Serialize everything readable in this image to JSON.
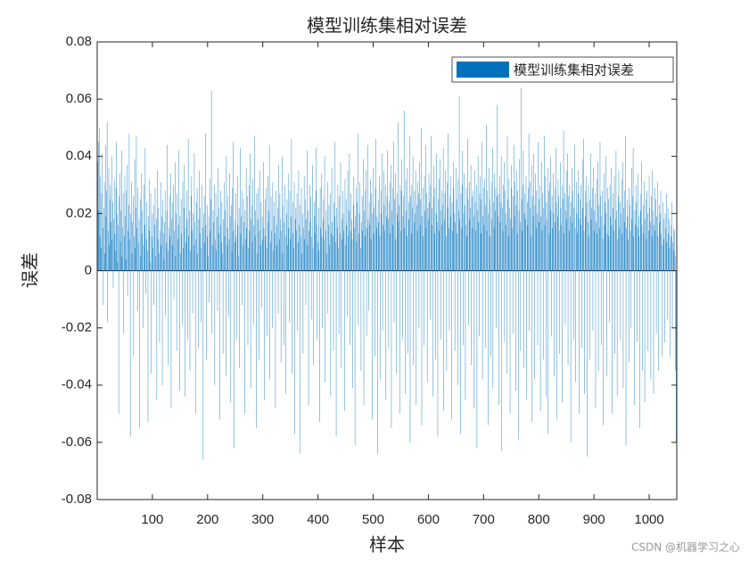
{
  "chart_data": {
    "type": "bar",
    "title": "模型训练集相对误差",
    "x_label": "样本",
    "y_label": "误差",
    "legend": "top-right",
    "color": "#0072BD",
    "xlim": [
      0,
      1050
    ],
    "xticks": [
      100,
      200,
      300,
      400,
      500,
      600,
      700,
      800,
      900,
      1000
    ],
    "ylim": [
      -0.08,
      0.08
    ],
    "yticks": [
      -0.08,
      -0.06,
      -0.04,
      -0.02,
      0,
      0.02,
      0.04,
      0.06,
      0.08
    ],
    "series": [
      {
        "name": "模型训练集相对误差",
        "color": "#0072BD",
        "values": [
          0.038,
          0.045,
          0.021,
          0.05,
          0.012,
          0.033,
          0.008,
          0.027,
          0.041,
          0.015,
          -0.012,
          0.022,
          0.031,
          0.006,
          0.044,
          0.019,
          0.028,
          0.052,
          -0.018,
          0.014,
          0.036,
          0.009,
          0.025,
          0.03,
          0.017,
          0.011,
          0.04,
          0.024,
          -0.006,
          0.018,
          0.032,
          0.013,
          0.007,
          0.029,
          0.045,
          0.02,
          0.003,
          0.016,
          -0.05,
          0.026,
          0.034,
          0.01,
          0.021,
          0.042,
          0.005,
          0.015,
          0.027,
          -0.022,
          0.012,
          0.033,
          0.019,
          0.004,
          0.028,
          0.037,
          -0.009,
          0.014,
          0.023,
          0.048,
          0.011,
          -0.058,
          0.02,
          0.031,
          0.006,
          0.017,
          0.026,
          -0.03,
          0.012,
          0.039,
          0.008,
          0.022,
          0.047,
          0.015,
          -0.014,
          0.029,
          0.01,
          0.018,
          -0.055,
          0.025,
          0.005,
          0.034,
          0.013,
          0.021,
          -0.02,
          0.009,
          0.03,
          0.016,
          0.043,
          -0.008,
          0.011,
          0.024,
          0.007,
          -0.053,
          0.019,
          0.032,
          0.014,
          0.003,
          0.027,
          -0.036,
          0.012,
          0.02,
          0.008,
          0.023,
          -0.012,
          0.016,
          0.029,
          0.005,
          0.018,
          -0.045,
          0.035,
          0.011,
          0.022,
          0.006,
          -0.025,
          0.014,
          0.031,
          0.009,
          0.019,
          -0.04,
          0.025,
          0.013,
          0.004,
          0.017,
          0.028,
          -0.016,
          0.01,
          0.021,
          0.044,
          0.007,
          -0.033,
          0.015,
          0.026,
          0.012,
          0.034,
          -0.048,
          0.018,
          0.009,
          0.024,
          0.03,
          -0.01,
          0.014,
          0.038,
          0.005,
          0.02,
          -0.028,
          0.027,
          0.011,
          0.016,
          0.042,
          -0.042,
          0.019,
          0.006,
          0.025,
          0.013,
          -0.019,
          0.031,
          0.008,
          0.022,
          0.037,
          -0.044,
          0.015,
          0.01,
          0.028,
          0.018,
          -0.024,
          0.046,
          0.012,
          0.021,
          -0.035,
          0.007,
          0.026,
          0.033,
          0.014,
          -0.015,
          0.02,
          0.009,
          0.041,
          0.017,
          -0.05,
          0.011,
          0.024,
          0.029,
          0.006,
          -0.027,
          0.018,
          0.035,
          0.013,
          0.022,
          -0.018,
          0.008,
          0.03,
          0.015,
          -0.066,
          0.02,
          0.026,
          0.01,
          0.048,
          0.016,
          -0.031,
          0.023,
          0.012,
          0.005,
          0.019,
          -0.011,
          0.032,
          0.014,
          0.025,
          0.063,
          -0.022,
          0.009,
          0.021,
          0.017,
          0.03,
          -0.04,
          0.011,
          0.027,
          0.007,
          0.019,
          -0.014,
          0.036,
          0.013,
          0.022,
          -0.052,
          0.016,
          0.028,
          0.01,
          0.024,
          0.006,
          -0.029,
          0.018,
          0.031,
          0.012,
          0.021,
          -0.037,
          0.04,
          0.009,
          0.015,
          0.026,
          -0.016,
          0.011,
          0.034,
          0.019,
          -0.046,
          0.023,
          0.007,
          0.029,
          0.045,
          0.014,
          -0.062,
          0.018,
          0.01,
          0.027,
          0.012,
          -0.024,
          0.033,
          0.016,
          0.005,
          0.022,
          -0.034,
          0.043,
          0.013,
          0.019,
          0.028,
          -0.012,
          0.009,
          0.025,
          0.017,
          -0.05,
          0.021,
          0.011,
          0.036,
          0.015,
          0.026,
          -0.026,
          0.008,
          0.03,
          0.014,
          0.041,
          -0.041,
          0.018,
          0.023,
          0.01,
          0.032,
          -0.019,
          0.016,
          0.047,
          0.012,
          0.021,
          -0.055,
          0.027,
          0.006,
          0.018,
          0.029,
          -0.031,
          0.014,
          0.035,
          0.009,
          0.024,
          -0.013,
          0.019,
          0.011,
          0.038,
          0.015,
          -0.045,
          0.025,
          0.012,
          0.029,
          0.008,
          -0.023,
          0.033,
          0.017,
          0.021,
          0.044,
          -0.038,
          0.01,
          0.026,
          0.014,
          -0.02,
          0.031,
          0.007,
          0.019,
          0.024,
          0.013,
          -0.048,
          0.028,
          0.016,
          0.009,
          0.022,
          -0.015,
          0.037,
          0.011,
          0.027,
          0.018,
          -0.032,
          0.014,
          0.04,
          0.006,
          0.023,
          -0.026,
          0.017,
          0.03,
          0.012,
          -0.043,
          0.02,
          0.025,
          0.009,
          0.034,
          0.015,
          -0.018,
          0.028,
          0.011,
          0.019,
          0.046,
          -0.036,
          0.013,
          0.024,
          0.008,
          0.031,
          -0.057,
          0.018,
          0.022,
          0.014,
          0.027,
          -0.021,
          0.01,
          0.035,
          0.016,
          -0.064,
          0.023,
          0.012,
          0.029,
          0.006,
          0.02,
          -0.029,
          0.015,
          0.033,
          0.011,
          0.025,
          -0.012,
          0.018,
          0.042,
          0.009,
          0.021,
          -0.047,
          0.014,
          0.03,
          0.017,
          0.026,
          -0.017,
          0.012,
          0.037,
          0.008,
          -0.033,
          0.024,
          0.019,
          0.013,
          0.028,
          0.043,
          -0.024,
          0.016,
          0.01,
          0.022,
          0.007,
          -0.053,
          0.029,
          0.015,
          0.034,
          0.012,
          -0.02,
          0.018,
          0.025,
          0.011,
          0.04,
          -0.039,
          0.014,
          0.021,
          0.006,
          -0.015,
          0.031,
          0.016,
          0.023,
          0.009,
          0.027,
          -0.044,
          0.013,
          0.036,
          0.017,
          0.012,
          -0.028,
          0.024,
          0.019,
          0.045,
          0.01,
          -0.058,
          0.022,
          0.015,
          0.03,
          0.008,
          -0.022,
          0.026,
          0.013,
          0.038,
          -0.034,
          0.018,
          0.011,
          0.028,
          0.02,
          0.014,
          -0.049,
          0.032,
          0.009,
          0.025,
          0.016,
          -0.016,
          0.035,
          0.012,
          0.021,
          0.041,
          -0.026,
          0.014,
          0.027,
          0.018,
          0.011,
          -0.041,
          0.023,
          0.033,
          0.015,
          -0.061,
          0.019,
          0.029,
          0.01,
          0.024,
          0.048,
          -0.019,
          0.013,
          0.02,
          0.031,
          0.008,
          -0.035,
          0.017,
          0.026,
          0.014,
          0.039,
          -0.047,
          0.021,
          0.012,
          0.028,
          0.035,
          -0.023,
          0.015,
          0.044,
          0.018,
          -0.014,
          0.024,
          0.016,
          0.032,
          0.011,
          0.027,
          -0.052,
          0.02,
          0.036,
          0.013,
          0.022,
          -0.03,
          0.029,
          0.046,
          0.015,
          0.019,
          -0.064,
          0.025,
          0.017,
          0.033,
          0.012,
          -0.038,
          0.028,
          0.02,
          0.041,
          -0.021,
          0.016,
          0.035,
          0.023,
          0.014,
          0.03,
          -0.045,
          0.019,
          0.026,
          0.042,
          0.018,
          -0.027,
          0.024,
          0.031,
          0.013,
          0.037,
          -0.055,
          0.021,
          0.029,
          0.016,
          0.045,
          -0.018,
          0.025,
          0.034,
          0.011,
          -0.036,
          0.027,
          0.02,
          0.052,
          0.017,
          0.023,
          -0.05,
          0.03,
          0.014,
          0.028,
          0.039,
          -0.024,
          0.019,
          0.026,
          0.056,
          0.015,
          -0.043,
          0.032,
          0.021,
          0.012,
          0.036,
          -0.029,
          0.024,
          0.018,
          0.047,
          -0.06,
          0.026,
          0.013,
          0.03,
          0.022,
          0.04,
          -0.033,
          0.017,
          0.028,
          0.02,
          0.035,
          -0.047,
          0.023,
          0.014,
          0.031,
          0.027,
          -0.02,
          0.038,
          0.016,
          0.025,
          0.05,
          -0.054,
          0.019,
          0.029,
          0.012,
          -0.026,
          0.033,
          0.021,
          0.044,
          0.015,
          0.027,
          -0.039,
          0.022,
          0.018,
          0.034,
          0.024,
          -0.017,
          0.03,
          0.047,
          0.016,
          0.022,
          -0.044,
          0.026,
          0.037,
          0.013,
          0.029,
          -0.031,
          0.02,
          0.041,
          0.017,
          -0.058,
          0.025,
          0.032,
          0.014,
          0.039,
          0.021,
          -0.024,
          0.028,
          0.016,
          0.023,
          0.043,
          -0.049,
          0.018,
          0.027,
          0.035,
          0.012,
          -0.035,
          0.031,
          0.022,
          0.048,
          0.015,
          -0.021,
          0.026,
          0.019,
          0.033,
          -0.052,
          0.024,
          0.014,
          0.038,
          0.029,
          0.02,
          -0.028,
          0.017,
          0.036,
          0.025,
          0.013,
          -0.04,
          0.032,
          0.021,
          0.061,
          0.018,
          -0.057,
          0.027,
          0.015,
          0.03,
          0.042,
          -0.026,
          0.02,
          0.034,
          0.023,
          -0.045,
          0.016,
          0.029,
          0.012,
          0.046,
          0.025,
          -0.019,
          0.031,
          0.018,
          0.022,
          0.037,
          -0.033,
          0.026,
          0.015,
          0.028,
          0.019,
          -0.048,
          0.035,
          0.024,
          0.014,
          0.03,
          -0.062,
          0.021,
          0.04,
          0.017,
          -0.023,
          0.027,
          0.033,
          0.013,
          0.025,
          0.045,
          -0.038,
          0.019,
          0.029,
          0.016,
          0.032,
          -0.027,
          0.023,
          0.051,
          0.014,
          0.028,
          -0.054,
          0.02,
          0.036,
          0.025,
          0.012,
          -0.03,
          0.031,
          0.018,
          0.043,
          -0.041,
          0.024,
          0.015,
          0.034,
          0.021,
          0.029,
          -0.02,
          0.026,
          0.058,
          0.019,
          0.027,
          -0.047,
          0.033,
          0.017,
          0.024,
          0.04,
          -0.063,
          0.022,
          0.014,
          0.03,
          0.038,
          -0.025,
          0.028,
          0.02,
          0.016,
          -0.036,
          0.047,
          0.025,
          0.012,
          0.032,
          0.022,
          -0.05,
          0.018,
          0.037,
          0.029,
          0.015,
          -0.022,
          0.026,
          0.044,
          0.019,
          0.031,
          -0.042,
          0.023,
          0.035,
          0.013,
          0.028,
          -0.059,
          0.021,
          0.039,
          0.017,
          -0.028,
          0.064,
          0.025,
          0.014,
          0.03,
          0.042,
          -0.034,
          0.02,
          0.027,
          0.018,
          0.033,
          -0.045,
          0.024,
          0.016,
          0.029,
          0.048,
          -0.021,
          0.031,
          0.022,
          0.012,
          0.037,
          -0.053,
          0.026,
          0.019,
          0.041,
          -0.038,
          0.023,
          0.034,
          0.015,
          0.028,
          0.02,
          -0.026,
          0.045,
          0.017,
          0.025,
          0.03,
          -0.049,
          0.019,
          0.038,
          0.014,
          0.027,
          -0.031,
          0.022,
          0.047,
          0.016,
          0.033,
          -0.044,
          0.024,
          0.018,
          0.036,
          -0.057,
          0.028,
          0.013,
          0.031,
          0.04,
          0.021,
          -0.023,
          0.026,
          0.015,
          0.034,
          0.02,
          -0.037,
          0.029,
          0.017,
          0.043,
          0.024,
          -0.052,
          0.019,
          0.032,
          0.026,
          0.014,
          -0.029,
          0.038,
          0.022,
          0.016,
          -0.046,
          0.03,
          0.025,
          0.049,
          0.013,
          0.027,
          -0.019,
          0.021,
          0.035,
          0.018,
          0.041,
          -0.033,
          0.026,
          0.014,
          0.03,
          0.019,
          -0.06,
          0.024,
          0.036,
          0.017,
          0.028,
          -0.024,
          0.022,
          0.044,
          0.015,
          -0.039,
          0.031,
          0.02,
          0.013,
          0.027,
          0.035,
          -0.05,
          0.018,
          0.025,
          0.03,
          0.016,
          -0.027,
          0.039,
          0.022,
          0.046,
          0.014,
          -0.043,
          0.028,
          0.019,
          0.033,
          0.024,
          -0.065,
          0.017,
          0.03,
          0.012,
          -0.031,
          0.025,
          0.041,
          0.018,
          0.022,
          0.029,
          -0.021,
          0.036,
          0.014,
          0.021,
          0.027,
          -0.048,
          0.017,
          0.032,
          0.013,
          0.038,
          -0.035,
          0.023,
          0.015,
          0.045,
          0.026,
          -0.026,
          0.019,
          0.028,
          0.011,
          -0.054,
          0.034,
          0.016,
          0.024,
          0.02,
          0.04,
          -0.037,
          0.013,
          0.029,
          0.025,
          0.012,
          -0.018,
          0.03,
          0.019,
          0.036,
          0.016,
          -0.05,
          0.022,
          0.027,
          0.014,
          0.033,
          -0.029,
          0.018,
          0.042,
          0.021,
          -0.044,
          0.011,
          0.026,
          0.035,
          0.015,
          0.024,
          -0.024,
          0.02,
          0.032,
          0.013,
          0.038,
          -0.041,
          0.022,
          0.017,
          0.028,
          0.047,
          -0.061,
          0.015,
          0.025,
          0.019,
          0.011,
          -0.032,
          0.029,
          0.023,
          0.014,
          -0.02,
          0.036,
          0.018,
          0.026,
          0.043,
          0.012,
          -0.047,
          0.021,
          0.016,
          0.03,
          0.024,
          -0.025,
          0.015,
          0.034,
          0.019,
          0.012,
          -0.055,
          0.027,
          0.021,
          0.038,
          0.016,
          -0.035,
          0.023,
          0.013,
          0.031,
          -0.046,
          0.018,
          0.025,
          0.011,
          0.028,
          0.02,
          -0.028,
          0.014,
          0.033,
          0.022,
          0.017,
          -0.038,
          0.026,
          0.012,
          0.035,
          0.021,
          -0.043,
          0.016,
          0.029,
          0.014,
          0.025,
          -0.022,
          0.019,
          0.031,
          0.012,
          -0.035,
          0.023,
          0.017,
          0.02,
          0.028,
          0.013,
          -0.03,
          0.009,
          0.024,
          0.018,
          0.011,
          -0.025,
          0.02,
          0.015,
          0.027,
          0.01,
          -0.017,
          0.022,
          0.013,
          0.018,
          0.008,
          -0.03,
          0.016,
          0.012,
          0.024,
          -0.02,
          0.01,
          0.015,
          0.007,
          0.014,
          0.005,
          -0.035,
          -0.06,
          -0.048
        ]
      }
    ]
  },
  "watermark": "CSDN @机器学习之心"
}
